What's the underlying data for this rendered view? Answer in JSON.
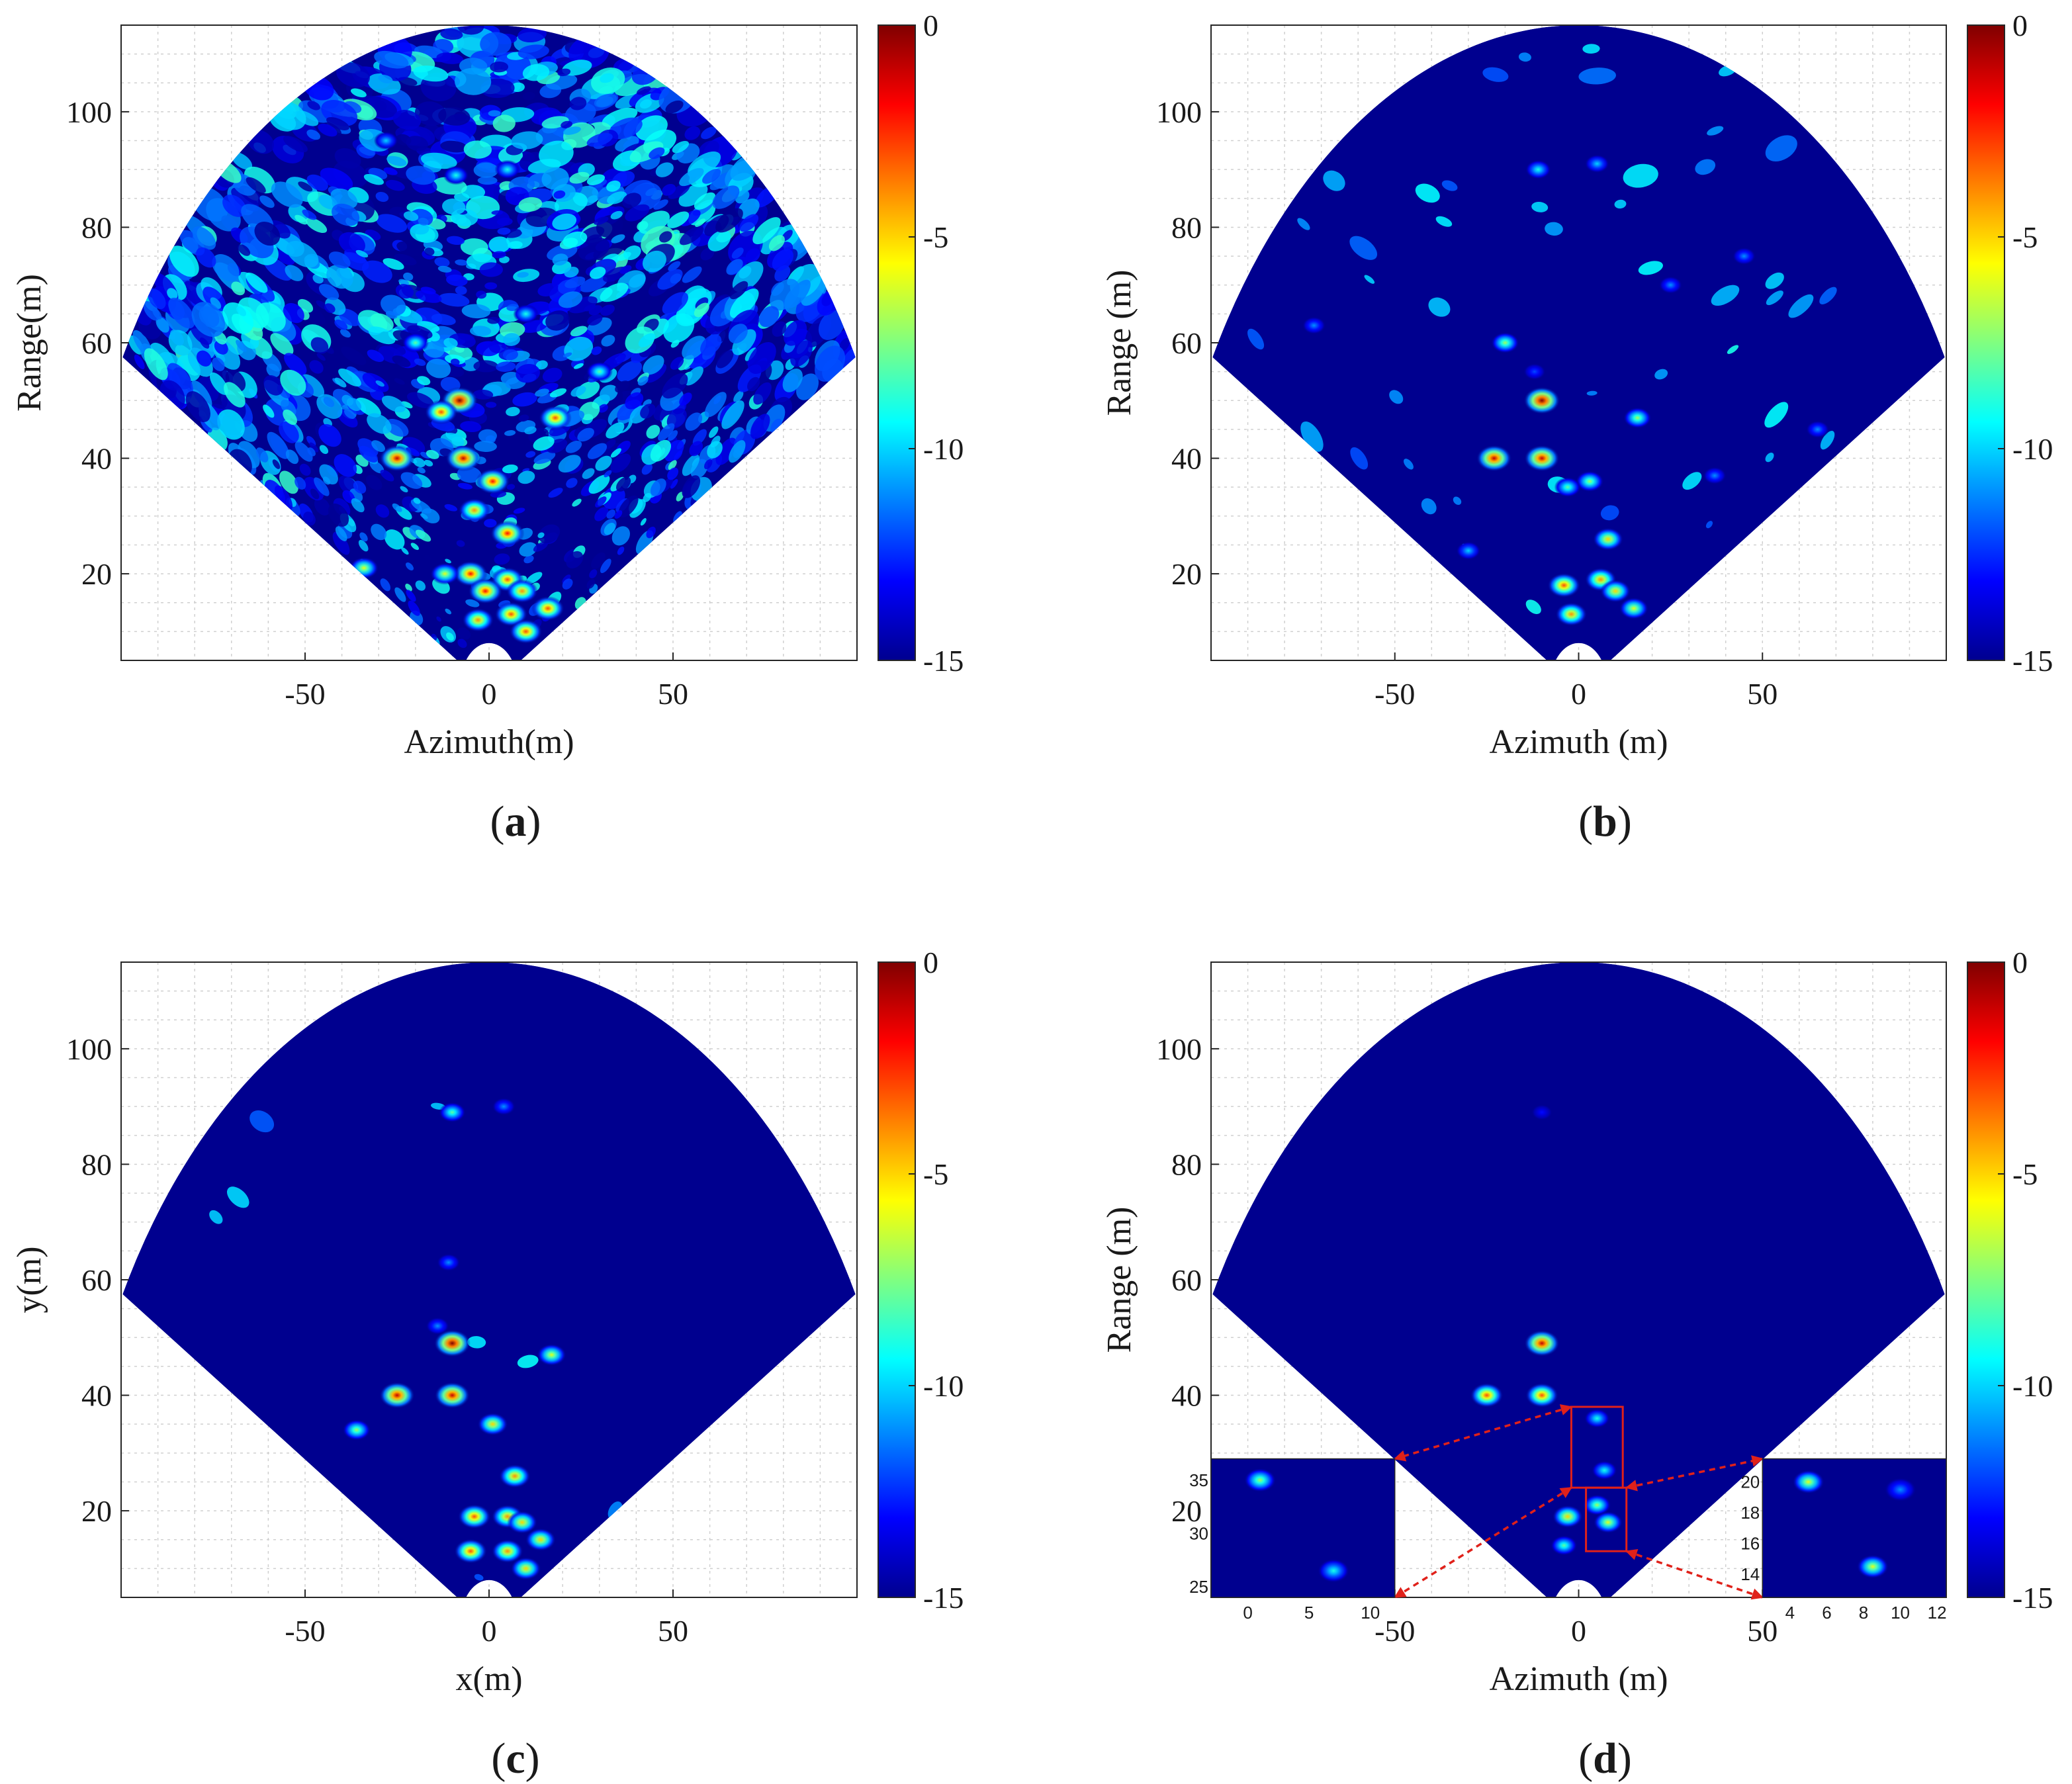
{
  "colors": {
    "background_field": "#00008f",
    "colormap": [
      "#00008f",
      "#0000ff",
      "#0080ff",
      "#00ffff",
      "#80ff80",
      "#ffff00",
      "#ff8000",
      "#ff0000",
      "#800000"
    ],
    "annotation": "#e0211a"
  },
  "chart_data": [
    {
      "id": "a",
      "type": "heatmap",
      "caption": "(a)",
      "caption_letter": "a",
      "xlabel": "Azimuth(m)",
      "ylabel": "Range(m)",
      "xlim": [
        -100,
        100
      ],
      "ylim": [
        5,
        115
      ],
      "xticks": [
        -50,
        0,
        50
      ],
      "xtick_labels": [
        "-50",
        "0",
        "50"
      ],
      "yticks": [
        20,
        40,
        60,
        80,
        100
      ],
      "ytick_labels": [
        "20",
        "40",
        "60",
        "80",
        "100"
      ],
      "colorbar": {
        "range": [
          -15,
          0
        ],
        "ticks": [
          0,
          -5,
          -10,
          -15
        ],
        "tick_labels": [
          "0",
          "-5",
          "-10",
          "-15"
        ]
      },
      "sector": {
        "min_range": 8,
        "max_range": 115,
        "half_angle_deg": 60
      },
      "clutter_level": "high",
      "targets": [
        {
          "x": -8,
          "y": 50,
          "db": 0
        },
        {
          "x": -13,
          "y": 48,
          "db": -3
        },
        {
          "x": -25,
          "y": 40,
          "db": -1
        },
        {
          "x": -7,
          "y": 40,
          "db": -1
        },
        {
          "x": 1,
          "y": 36,
          "db": -2
        },
        {
          "x": -4,
          "y": 31,
          "db": -4
        },
        {
          "x": 5,
          "y": 27,
          "db": -2
        },
        {
          "x": 18,
          "y": 47,
          "db": -3
        },
        {
          "x": -5,
          "y": 20,
          "db": -2
        },
        {
          "x": 5,
          "y": 19,
          "db": -3
        },
        {
          "x": 9,
          "y": 17,
          "db": -4
        },
        {
          "x": 16,
          "y": 14,
          "db": -3
        },
        {
          "x": -1,
          "y": 17,
          "db": -2
        },
        {
          "x": -12,
          "y": 20,
          "db": -6
        },
        {
          "x": -34,
          "y": 21,
          "db": -6
        },
        {
          "x": 6,
          "y": 13,
          "db": -3
        },
        {
          "x": -3,
          "y": 12,
          "db": -4
        },
        {
          "x": 10,
          "y": 10,
          "db": -3
        },
        {
          "x": -9,
          "y": 89,
          "db": -9
        },
        {
          "x": 5,
          "y": 90,
          "db": -9
        },
        {
          "x": -20,
          "y": 60,
          "db": -8
        },
        {
          "x": 10,
          "y": 65,
          "db": -9
        },
        {
          "x": 30,
          "y": 55,
          "db": -8
        },
        {
          "x": -28,
          "y": 95,
          "db": -10
        }
      ]
    },
    {
      "id": "b",
      "type": "heatmap",
      "caption": "(b)",
      "caption_letter": "b",
      "xlabel": "Azimuth (m)",
      "ylabel": "Range (m)",
      "xlim": [
        -100,
        100
      ],
      "ylim": [
        5,
        115
      ],
      "xticks": [
        -50,
        0,
        50
      ],
      "xtick_labels": [
        "-50",
        "0",
        "50"
      ],
      "yticks": [
        20,
        40,
        60,
        80,
        100
      ],
      "ytick_labels": [
        "20",
        "40",
        "60",
        "80",
        "100"
      ],
      "colorbar": {
        "range": [
          -15,
          0
        ],
        "ticks": [
          0,
          -5,
          -10,
          -15
        ],
        "tick_labels": [
          "0",
          "-5",
          "-10",
          "-15"
        ]
      },
      "sector": {
        "min_range": 8,
        "max_range": 115,
        "half_angle_deg": 60
      },
      "clutter_level": "medium",
      "targets": [
        {
          "x": -10,
          "y": 50,
          "db": 0
        },
        {
          "x": -23,
          "y": 40,
          "db": -1
        },
        {
          "x": -10,
          "y": 40,
          "db": -1
        },
        {
          "x": -11,
          "y": 90,
          "db": -9
        },
        {
          "x": 5,
          "y": 91,
          "db": -10
        },
        {
          "x": -20,
          "y": 60,
          "db": -7
        },
        {
          "x": 16,
          "y": 47,
          "db": -7
        },
        {
          "x": 8,
          "y": 26,
          "db": -5
        },
        {
          "x": 3,
          "y": 36,
          "db": -7
        },
        {
          "x": -3,
          "y": 35,
          "db": -8
        },
        {
          "x": -4,
          "y": 18,
          "db": -3
        },
        {
          "x": 6,
          "y": 19,
          "db": -4
        },
        {
          "x": 10,
          "y": 17,
          "db": -5
        },
        {
          "x": 15,
          "y": 14,
          "db": -6
        },
        {
          "x": -2,
          "y": 13,
          "db": -4
        },
        {
          "x": -30,
          "y": 24,
          "db": -10
        },
        {
          "x": -72,
          "y": 63,
          "db": -11
        },
        {
          "x": 45,
          "y": 75,
          "db": -11
        },
        {
          "x": 65,
          "y": 45,
          "db": -11
        },
        {
          "x": 37,
          "y": 37,
          "db": -11
        },
        {
          "x": 25,
          "y": 70,
          "db": -11
        },
        {
          "x": -12,
          "y": 55,
          "db": -12
        }
      ]
    },
    {
      "id": "c",
      "type": "heatmap",
      "caption": "(c)",
      "caption_letter": "c",
      "xlabel": "x(m)",
      "ylabel": "y(m)",
      "xlim": [
        -100,
        100
      ],
      "ylim": [
        5,
        115
      ],
      "xticks": [
        -50,
        0,
        50
      ],
      "xtick_labels": [
        "-50",
        "0",
        "50"
      ],
      "yticks": [
        20,
        40,
        60,
        80,
        100
      ],
      "ytick_labels": [
        "20",
        "40",
        "60",
        "80",
        "100"
      ],
      "colorbar": {
        "range": [
          -15,
          0
        ],
        "ticks": [
          0,
          -5,
          -10,
          -15
        ],
        "tick_labels": [
          "0",
          "-5",
          "-10",
          "-15"
        ]
      },
      "sector": {
        "min_range": 8,
        "max_range": 115,
        "half_angle_deg": 60
      },
      "clutter_level": "low",
      "targets": [
        {
          "x": -10,
          "y": 49,
          "db": 0
        },
        {
          "x": -25,
          "y": 40,
          "db": -1
        },
        {
          "x": -10,
          "y": 40,
          "db": -1
        },
        {
          "x": -10,
          "y": 89,
          "db": -8
        },
        {
          "x": 4,
          "y": 90,
          "db": -11
        },
        {
          "x": 17,
          "y": 47,
          "db": -6
        },
        {
          "x": 7,
          "y": 26,
          "db": -4
        },
        {
          "x": 1,
          "y": 35,
          "db": -5
        },
        {
          "x": -36,
          "y": 34,
          "db": -7
        },
        {
          "x": -4,
          "y": 19,
          "db": -3
        },
        {
          "x": 5,
          "y": 19,
          "db": -4
        },
        {
          "x": 9,
          "y": 18,
          "db": -5
        },
        {
          "x": 14,
          "y": 15,
          "db": -5
        },
        {
          "x": -5,
          "y": 13,
          "db": -3
        },
        {
          "x": 5,
          "y": 13,
          "db": -4
        },
        {
          "x": 10,
          "y": 10,
          "db": -5
        },
        {
          "x": -11,
          "y": 63,
          "db": -11
        },
        {
          "x": -14,
          "y": 52,
          "db": -11
        }
      ]
    },
    {
      "id": "d",
      "type": "heatmap",
      "caption": "(d)",
      "caption_letter": "d",
      "xlabel": "Azimuth (m)",
      "ylabel": "Range (m)",
      "xlim": [
        -100,
        100
      ],
      "ylim": [
        5,
        115
      ],
      "xticks": [
        -50,
        0,
        50
      ],
      "xtick_labels": [
        "-50",
        "0",
        "50"
      ],
      "yticks": [
        20,
        40,
        60,
        80,
        100
      ],
      "ytick_labels": [
        "20",
        "40",
        "60",
        "80",
        "100"
      ],
      "colorbar": {
        "range": [
          -15,
          0
        ],
        "ticks": [
          0,
          -5,
          -10,
          -15
        ],
        "tick_labels": [
          "0",
          "-5",
          "-10",
          "-15"
        ]
      },
      "sector": {
        "min_range": 8,
        "max_range": 115,
        "half_angle_deg": 60
      },
      "clutter_level": "none",
      "targets": [
        {
          "x": -10,
          "y": 49,
          "db": -1
        },
        {
          "x": -25,
          "y": 40,
          "db": -3
        },
        {
          "x": -10,
          "y": 40,
          "db": -3
        },
        {
          "x": -10,
          "y": 89,
          "db": -13
        },
        {
          "x": 5,
          "y": 36,
          "db": -9
        },
        {
          "x": 7,
          "y": 27,
          "db": -9
        },
        {
          "x": -3,
          "y": 19,
          "db": -5
        },
        {
          "x": 5,
          "y": 21,
          "db": -7
        },
        {
          "x": 8,
          "y": 18,
          "db": -6
        },
        {
          "x": -4,
          "y": 14,
          "db": -8
        }
      ],
      "zoom_boxes": [
        {
          "x_range": [
            -2,
            12
          ],
          "y_range": [
            24,
            38
          ]
        },
        {
          "x_range": [
            2,
            13
          ],
          "y_range": [
            13,
            24
          ]
        }
      ],
      "insets": [
        {
          "xticks": [
            0,
            5,
            10
          ],
          "xtick_labels": [
            "0",
            "5",
            "10"
          ],
          "yticks": [
            25,
            30,
            35
          ],
          "ytick_labels": [
            "25",
            "30",
            "35"
          ],
          "xlim": [
            -3,
            12
          ],
          "ylim": [
            24,
            37
          ],
          "targets": [
            {
              "x": 1,
              "y": 35,
              "db": -7
            },
            {
              "x": 7,
              "y": 26.5,
              "db": -9
            }
          ]
        },
        {
          "xticks": [
            4,
            6,
            8,
            10,
            12
          ],
          "xtick_labels": [
            "4",
            "6",
            "8",
            "10",
            "12"
          ],
          "yticks": [
            14,
            16,
            18,
            20
          ],
          "ytick_labels": [
            "14",
            "16",
            "18",
            "20"
          ],
          "xlim": [
            2.5,
            12.5
          ],
          "ylim": [
            12.5,
            21.5
          ],
          "targets": [
            {
              "x": 5,
              "y": 20,
              "db": -6
            },
            {
              "x": 8.5,
              "y": 14.5,
              "db": -6
            },
            {
              "x": 10,
              "y": 19.5,
              "db": -11
            }
          ]
        }
      ]
    }
  ]
}
